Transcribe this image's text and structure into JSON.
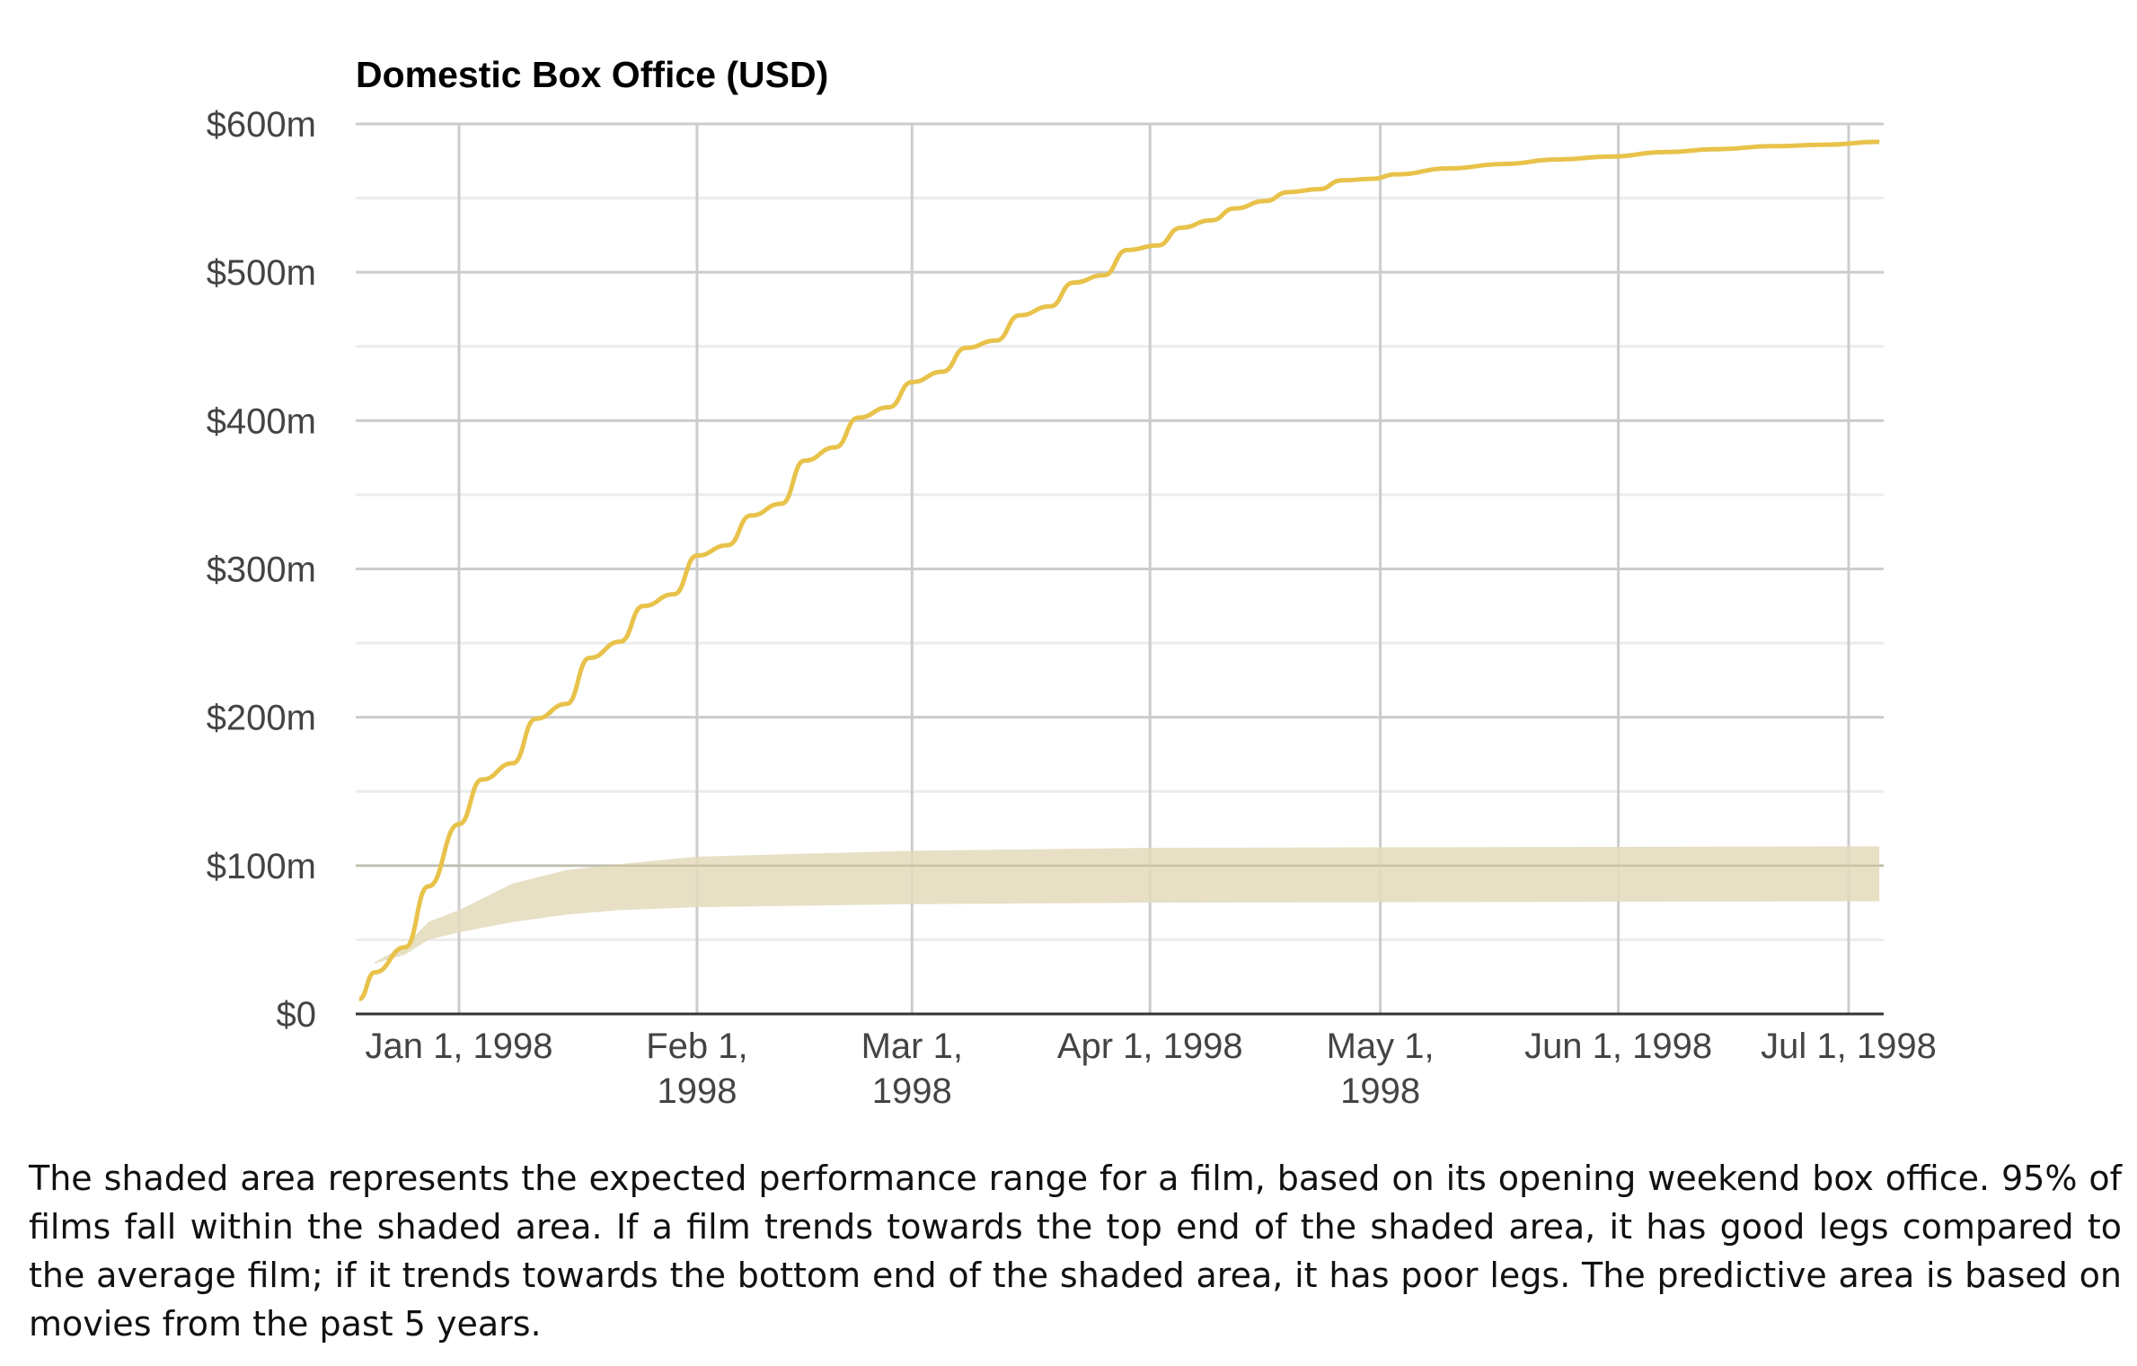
{
  "chart_data": {
    "type": "line",
    "title": "Domestic Box Office (USD)",
    "xlabel": "",
    "ylabel": "",
    "ylim": [
      0,
      600
    ],
    "y_ticks": [
      {
        "value": 0,
        "label": "$0"
      },
      {
        "value": 100,
        "label": "$100m"
      },
      {
        "value": 200,
        "label": "$200m"
      },
      {
        "value": 300,
        "label": "$300m"
      },
      {
        "value": 400,
        "label": "$400m"
      },
      {
        "value": 500,
        "label": "$500m"
      },
      {
        "value": 600,
        "label": "$600m"
      }
    ],
    "x_ticks": [
      {
        "date": "1998-01-01",
        "lines": [
          "Jan 1, 1998"
        ]
      },
      {
        "date": "1998-02-01",
        "lines": [
          "Feb 1,",
          "1998"
        ]
      },
      {
        "date": "1998-03-01",
        "lines": [
          "Mar 1,",
          "1998"
        ]
      },
      {
        "date": "1998-04-01",
        "lines": [
          "Apr 1, 1998"
        ]
      },
      {
        "date": "1998-05-01",
        "lines": [
          "May 1,",
          "1998"
        ]
      },
      {
        "date": "1998-06-01",
        "lines": [
          "Jun 1, 1998"
        ]
      },
      {
        "date": "1998-07-01",
        "lines": [
          "Jul 1, 1998"
        ]
      }
    ],
    "xlim": [
      "1997-12-18",
      "1998-07-08"
    ],
    "grid": true,
    "colors": {
      "line": "#e8c24a",
      "band": "#e3dbbb",
      "grid": "#cccccc",
      "minor_grid": "#ececec",
      "axis": "#333333"
    },
    "series": [
      {
        "name": "Domestic Box Office",
        "type": "line",
        "points": [
          [
            "1997-12-19",
            10
          ],
          [
            "1997-12-21",
            28
          ],
          [
            "1997-12-25",
            45
          ],
          [
            "1997-12-28",
            86
          ],
          [
            "1998-01-01",
            128
          ],
          [
            "1998-01-04",
            158
          ],
          [
            "1998-01-08",
            169
          ],
          [
            "1998-01-11",
            199
          ],
          [
            "1998-01-15",
            209
          ],
          [
            "1998-01-18",
            240
          ],
          [
            "1998-01-22",
            251
          ],
          [
            "1998-01-25",
            275
          ],
          [
            "1998-01-29",
            283
          ],
          [
            "1998-02-01",
            309
          ],
          [
            "1998-02-05",
            316
          ],
          [
            "1998-02-08",
            336
          ],
          [
            "1998-02-12",
            344
          ],
          [
            "1998-02-15",
            373
          ],
          [
            "1998-02-19",
            382
          ],
          [
            "1998-02-22",
            402
          ],
          [
            "1998-02-26",
            409
          ],
          [
            "1998-03-01",
            426
          ],
          [
            "1998-03-05",
            433
          ],
          [
            "1998-03-08",
            449
          ],
          [
            "1998-03-12",
            454
          ],
          [
            "1998-03-15",
            471
          ],
          [
            "1998-03-19",
            477
          ],
          [
            "1998-03-22",
            493
          ],
          [
            "1998-03-26",
            498
          ],
          [
            "1998-03-29",
            515
          ],
          [
            "1998-04-02",
            518
          ],
          [
            "1998-04-05",
            530
          ],
          [
            "1998-04-09",
            535
          ],
          [
            "1998-04-12",
            543
          ],
          [
            "1998-04-16",
            548
          ],
          [
            "1998-04-19",
            554
          ],
          [
            "1998-04-23",
            556
          ],
          [
            "1998-04-26",
            562
          ],
          [
            "1998-04-30",
            563
          ],
          [
            "1998-05-03",
            566
          ],
          [
            "1998-05-10",
            570
          ],
          [
            "1998-05-17",
            573
          ],
          [
            "1998-05-24",
            576
          ],
          [
            "1998-05-31",
            578
          ],
          [
            "1998-06-07",
            581
          ],
          [
            "1998-06-14",
            583
          ],
          [
            "1998-06-21",
            585
          ],
          [
            "1998-06-28",
            586
          ],
          [
            "1998-07-05",
            588
          ]
        ]
      },
      {
        "name": "Expected performance range (95%)",
        "type": "band",
        "points": [
          [
            "1997-12-21",
            34,
            35
          ],
          [
            "1997-12-25",
            40,
            46
          ],
          [
            "1997-12-28",
            50,
            62
          ],
          [
            "1998-01-01",
            55,
            70
          ],
          [
            "1998-01-08",
            62,
            88
          ],
          [
            "1998-01-15",
            67,
            97
          ],
          [
            "1998-01-22",
            70,
            101
          ],
          [
            "1998-02-01",
            72,
            106
          ],
          [
            "1998-03-01",
            74,
            110
          ],
          [
            "1998-04-01",
            75,
            112
          ],
          [
            "1998-07-05",
            76,
            113
          ]
        ]
      }
    ]
  },
  "caption": "The shaded area represents the expected performance range for a film, based on its opening weekend box office. 95% of films fall within the shaded area. If a film trends towards the top end of the shaded area, it has good legs compared to the average film; if it trends towards the bottom end of the shaded area, it has poor legs. The predictive area is based on movies from the past 5 years."
}
